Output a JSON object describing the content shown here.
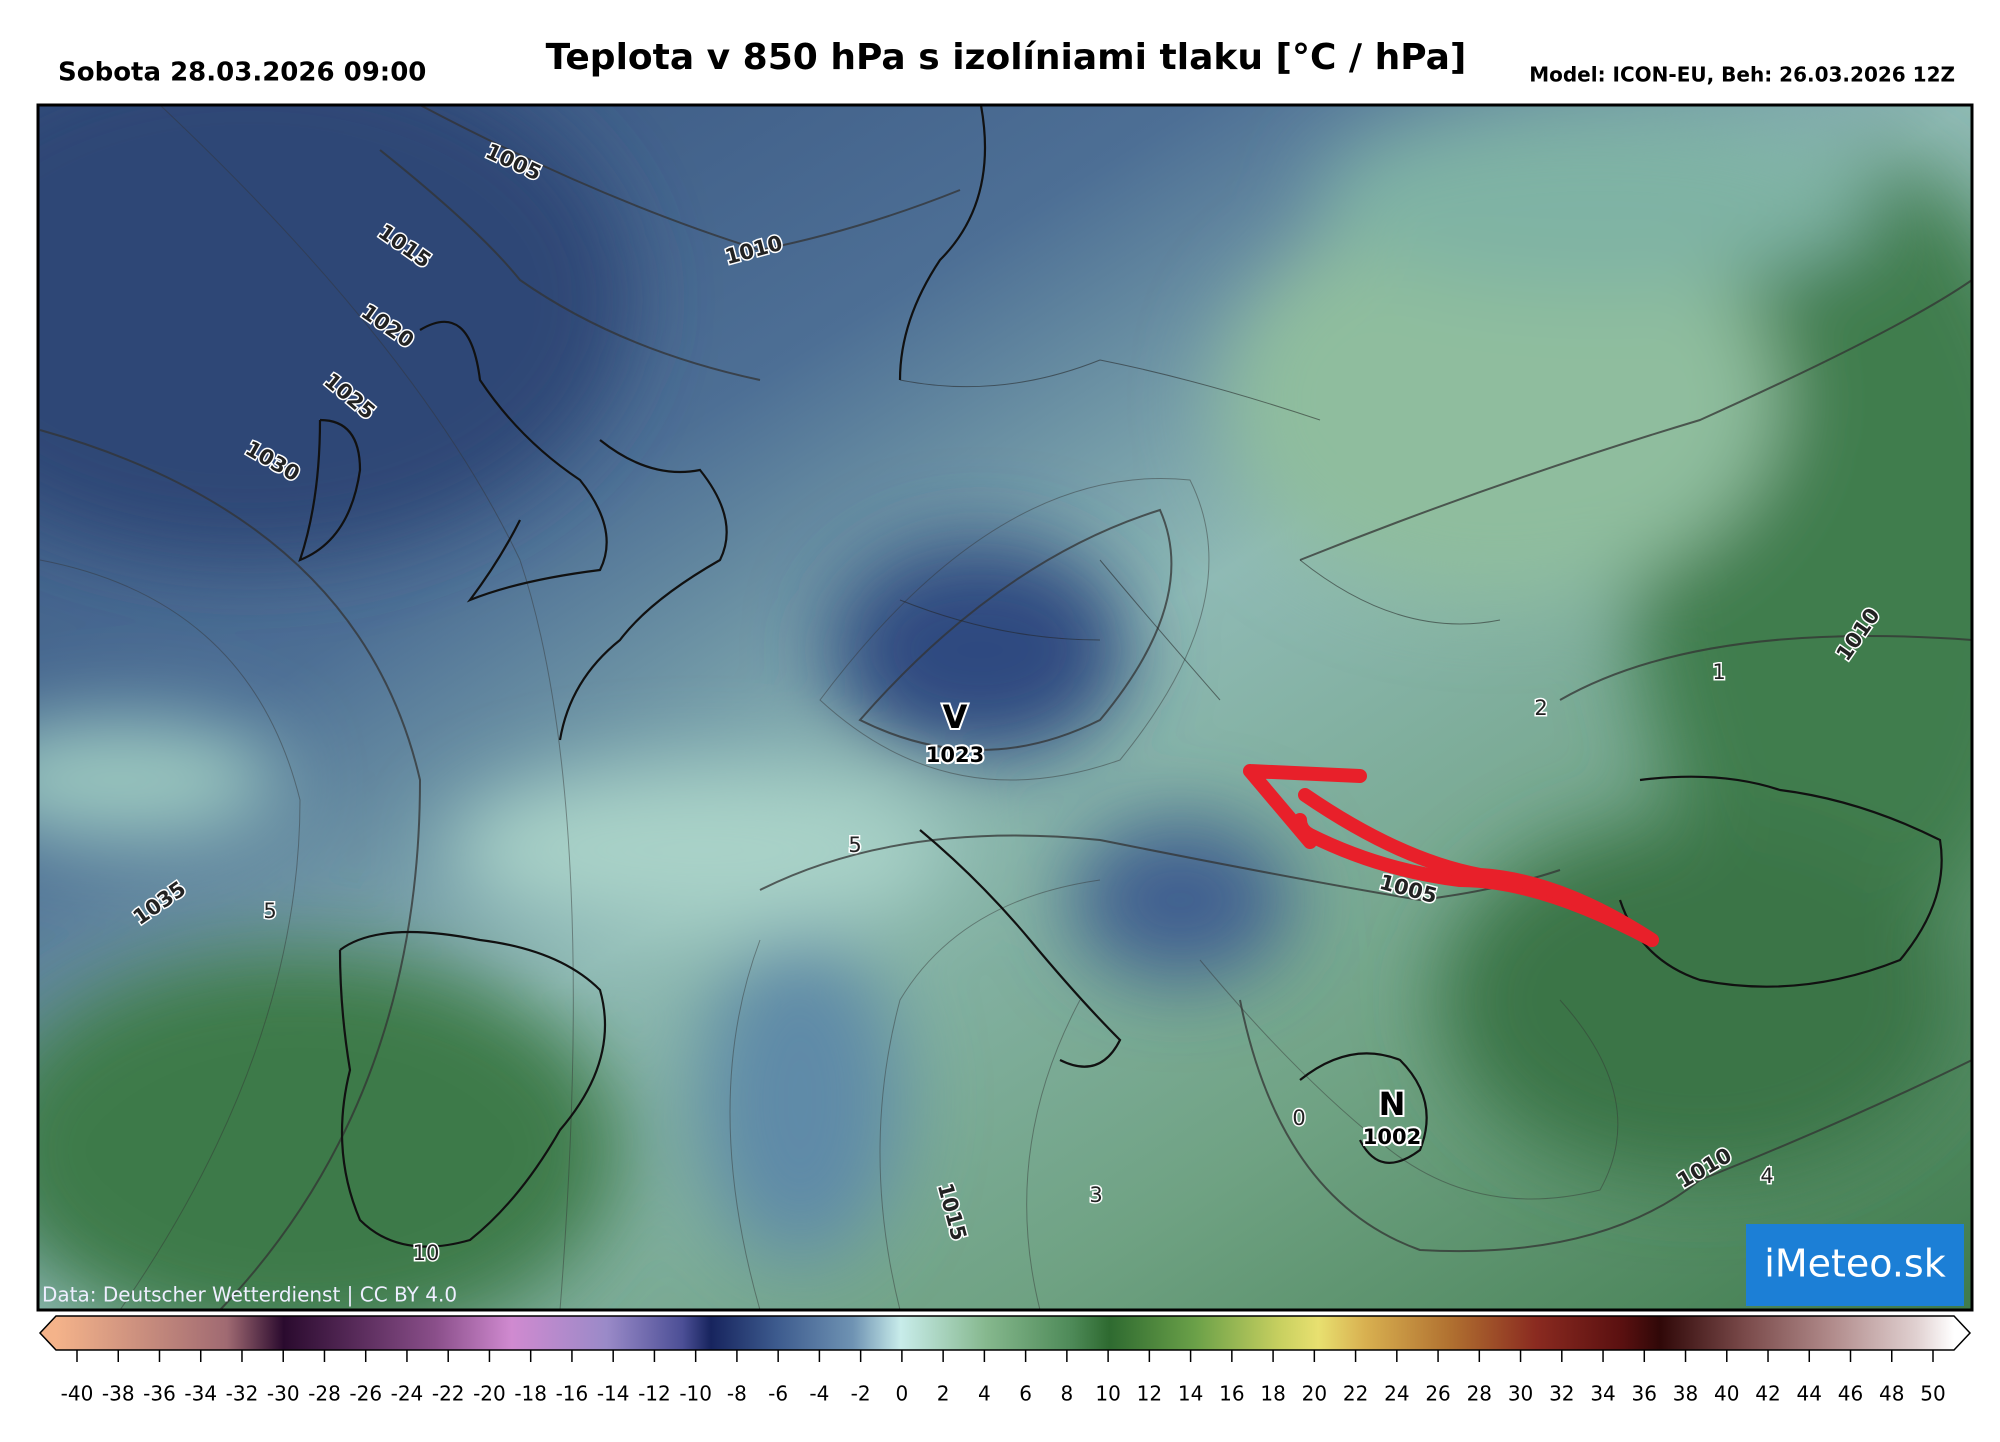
{
  "header": {
    "date": "Sobota 28.03.2026 09:00",
    "title": "Teplota v 850 hPa s izolíniami tlaku [°C / hPa]",
    "model": "Model: ICON-EU, Beh: 26.03.2026 12Z"
  },
  "map": {
    "labels": [
      "1005",
      "1015",
      "1020",
      "1025",
      "1030",
      "1010",
      "1010",
      "1",
      "2",
      "V",
      "1023",
      "5",
      "1005",
      "1035",
      "5",
      "N",
      "1002",
      "0",
      "1010",
      "4",
      "3",
      "1015",
      "10"
    ],
    "attribution": "Data: Deutscher Wetterdienst | CC BY 4.0",
    "logo": "iMeteo.sk"
  },
  "colorbar": {
    "ticks": [
      -40,
      -38,
      -36,
      -34,
      -32,
      -30,
      -28,
      -26,
      -24,
      -22,
      -20,
      -18,
      -16,
      -14,
      -12,
      -10,
      -8,
      -6,
      -4,
      -2,
      0,
      2,
      4,
      6,
      8,
      10,
      12,
      14,
      16,
      18,
      20,
      22,
      24,
      26,
      28,
      30,
      32,
      34,
      36,
      38,
      40,
      42,
      44,
      46,
      48,
      50
    ]
  }
}
